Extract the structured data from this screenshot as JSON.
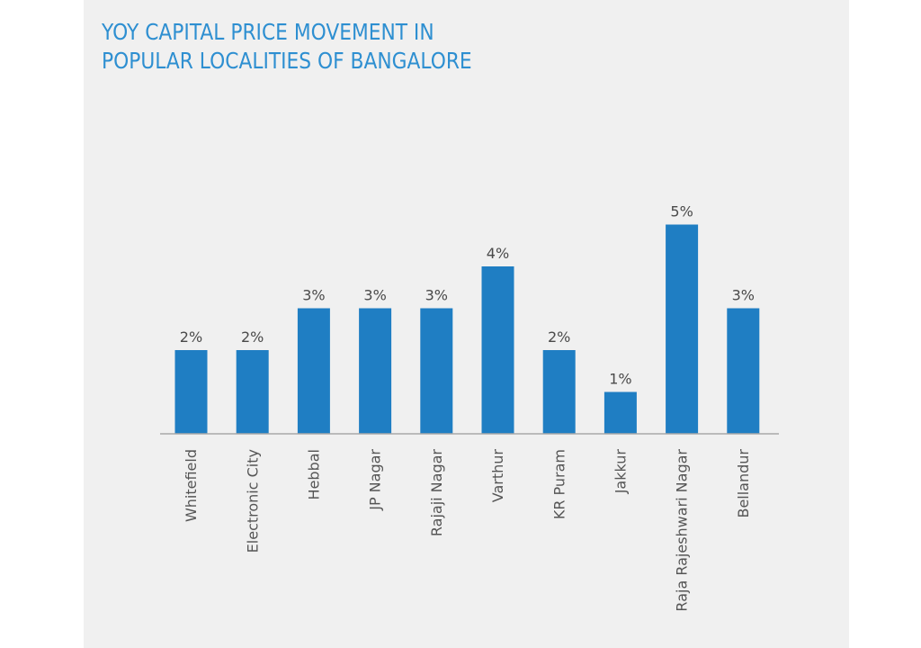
{
  "title_lines": [
    "YOY CAPITAL PRICE MOVEMENT IN",
    "POPULAR LOCALITIES OF BANGALORE"
  ],
  "chart_data": {
    "type": "bar",
    "title": "YOY CAPITAL PRICE MOVEMENT IN POPULAR LOCALITIES OF BANGALORE",
    "categories": [
      "Whitefield",
      "Electronic City",
      "Hebbal",
      "JP Nagar",
      "Rajaji Nagar",
      "Varthur",
      "KR Puram",
      "Jakkur",
      "Raja Rajeshwari Nagar",
      "Bellandur"
    ],
    "values": [
      2,
      2,
      3,
      3,
      3,
      4,
      2,
      1,
      5,
      3
    ],
    "data_labels": [
      "2%",
      "2%",
      "3%",
      "3%",
      "3%",
      "4%",
      "2%",
      "1%",
      "5%",
      "3%"
    ],
    "xlabel": "",
    "ylabel": "",
    "ylim": [
      0,
      5
    ],
    "grid": false,
    "legend": "none",
    "bar_color": "#1f7ec3"
  },
  "colors": {
    "title": "#2e8fd1",
    "panel_background": "#f0f0f0",
    "bar": "#1f7ec3"
  }
}
